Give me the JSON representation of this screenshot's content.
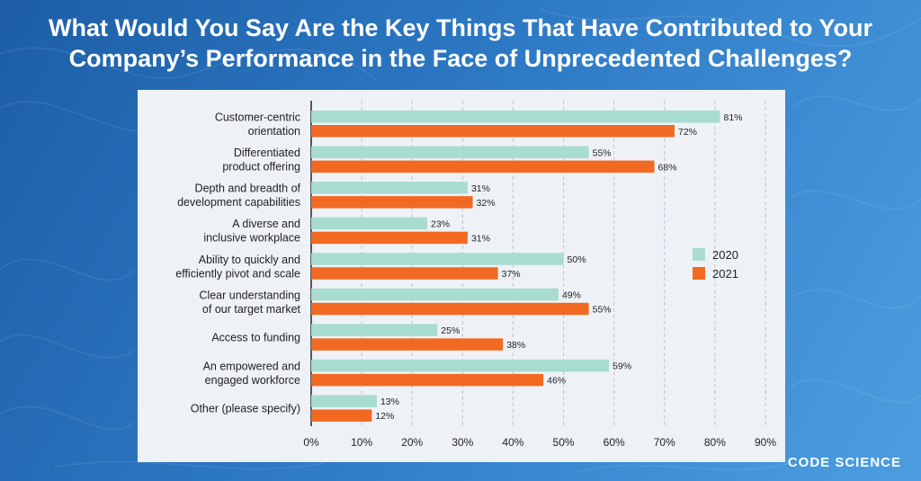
{
  "header": {
    "title_line1": "What Would You Say Are the Key Things That Have Contributed to Your",
    "title_line2": "Company’s Performance in the Face of Unprecedented Challenges?"
  },
  "brand": {
    "name": "CODE SCIENCE"
  },
  "colors": {
    "series_2020": "#a8dccf",
    "series_2021": "#f26a22",
    "background": "#2b6fb8",
    "panel": "#eef2f6"
  },
  "chart_data": {
    "type": "bar",
    "orientation": "horizontal",
    "title": "What Would You Say Are the Key Things That Have Contributed to Your Company’s Performance in the Face of Unprecedented Challenges?",
    "categories": [
      [
        "Customer-centric",
        "orientation"
      ],
      [
        "Differentiated",
        "product offering"
      ],
      [
        "Depth and breadth of",
        "development capabilities"
      ],
      [
        "A diverse and",
        "inclusive workplace"
      ],
      [
        "Ability to quickly and",
        "efficiently pivot and scale"
      ],
      [
        "Clear understanding",
        "of our target market"
      ],
      [
        "Access to funding"
      ],
      [
        "An empowered and",
        "engaged workforce"
      ],
      [
        "Other (please specify)"
      ]
    ],
    "series": [
      {
        "name": "2020",
        "color": "#a8dccf",
        "values": [
          81,
          55,
          31,
          23,
          50,
          49,
          25,
          59,
          13
        ]
      },
      {
        "name": "2021",
        "color": "#f26a22",
        "values": [
          72,
          68,
          32,
          31,
          37,
          55,
          38,
          46,
          12
        ]
      }
    ],
    "value_suffix": "%",
    "xlim": [
      0,
      90
    ],
    "x_ticks": [
      "0%",
      "10%",
      "20%",
      "30%",
      "40%",
      "50%",
      "60%",
      "70%",
      "80%",
      "90%"
    ],
    "grid": true,
    "legend_position": "right"
  }
}
